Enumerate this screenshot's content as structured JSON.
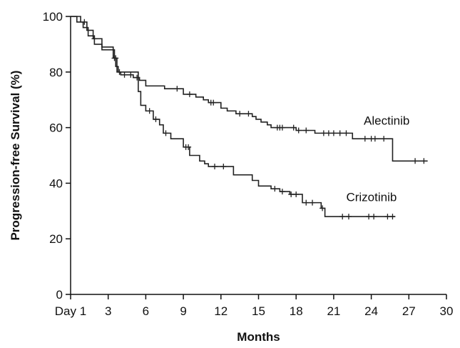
{
  "chart_data": {
    "type": "line",
    "title": "",
    "xlabel": "Months",
    "ylabel": "Progression-free Survival (%)",
    "xlim": [
      0,
      30
    ],
    "ylim": [
      0,
      100
    ],
    "xticks": [
      {
        "value": 0,
        "label": "Day 1"
      },
      {
        "value": 3,
        "label": "3"
      },
      {
        "value": 6,
        "label": "6"
      },
      {
        "value": 9,
        "label": "9"
      },
      {
        "value": 12,
        "label": "12"
      },
      {
        "value": 15,
        "label": "15"
      },
      {
        "value": 18,
        "label": "18"
      },
      {
        "value": 21,
        "label": "21"
      },
      {
        "value": 24,
        "label": "24"
      },
      {
        "value": 27,
        "label": "27"
      },
      {
        "value": 30,
        "label": "30"
      }
    ],
    "yticks": [
      0,
      20,
      40,
      60,
      80,
      100
    ],
    "grid": false,
    "line_color": "#222222",
    "series": [
      {
        "name": "Alectinib",
        "step": true,
        "x": [
          0,
          0.8,
          1.3,
          1.8,
          2.5,
          3.4,
          3.6,
          3.8,
          4.0,
          5.0,
          5.5,
          6.0,
          7.5,
          9.0,
          10.0,
          10.6,
          11.0,
          12.0,
          12.5,
          13.2,
          14.5,
          14.8,
          15.2,
          15.7,
          16.0,
          18.0,
          18.5,
          19.5,
          22.5,
          25.7
        ],
        "y": [
          100,
          98,
          95,
          92,
          89,
          85,
          82,
          80,
          79,
          78,
          77,
          75,
          74,
          72,
          71,
          70,
          69,
          67,
          66,
          65,
          64,
          63,
          62,
          61,
          60,
          59,
          59,
          58,
          56,
          48
        ],
        "censored": [
          {
            "x": 1.1,
            "y": 98
          },
          {
            "x": 1.9,
            "y": 92
          },
          {
            "x": 3.5,
            "y": 85
          },
          {
            "x": 3.9,
            "y": 80
          },
          {
            "x": 4.3,
            "y": 79
          },
          {
            "x": 4.8,
            "y": 79
          },
          {
            "x": 5.3,
            "y": 78
          },
          {
            "x": 8.5,
            "y": 74
          },
          {
            "x": 9.5,
            "y": 72
          },
          {
            "x": 11.2,
            "y": 69
          },
          {
            "x": 11.4,
            "y": 69
          },
          {
            "x": 13.5,
            "y": 65
          },
          {
            "x": 14.2,
            "y": 65
          },
          {
            "x": 16.5,
            "y": 60
          },
          {
            "x": 16.7,
            "y": 60
          },
          {
            "x": 16.9,
            "y": 60
          },
          {
            "x": 17.8,
            "y": 60
          },
          {
            "x": 18.2,
            "y": 59
          },
          {
            "x": 18.8,
            "y": 59
          },
          {
            "x": 20.2,
            "y": 58
          },
          {
            "x": 20.6,
            "y": 58
          },
          {
            "x": 21.0,
            "y": 58
          },
          {
            "x": 21.5,
            "y": 58
          },
          {
            "x": 22.0,
            "y": 58
          },
          {
            "x": 23.5,
            "y": 56
          },
          {
            "x": 24.0,
            "y": 56
          },
          {
            "x": 24.3,
            "y": 56
          },
          {
            "x": 25.0,
            "y": 56
          },
          {
            "x": 27.5,
            "y": 48
          },
          {
            "x": 28.2,
            "y": 48
          }
        ],
        "end_x": 28.5
      },
      {
        "name": "Crizotinib",
        "step": true,
        "x": [
          0,
          0.5,
          1.0,
          1.4,
          1.9,
          2.5,
          3.5,
          3.7,
          5.4,
          5.6,
          6.0,
          6.6,
          7.1,
          7.4,
          8.0,
          9.0,
          9.5,
          10.3,
          10.7,
          11.0,
          13.0,
          14.5,
          15.0,
          16.0,
          16.7,
          17.5,
          18.5,
          20.0,
          20.3
        ],
        "y": [
          100,
          98,
          96,
          93,
          90,
          88,
          85,
          80,
          73,
          68,
          66,
          63,
          61,
          58,
          56,
          53,
          50,
          48,
          47,
          46,
          43,
          41,
          39,
          38,
          37,
          36,
          33,
          31,
          28
        ],
        "censored": [
          {
            "x": 3.6,
            "y": 85
          },
          {
            "x": 6.3,
            "y": 66
          },
          {
            "x": 6.8,
            "y": 63
          },
          {
            "x": 7.6,
            "y": 58
          },
          {
            "x": 9.2,
            "y": 53
          },
          {
            "x": 9.4,
            "y": 53
          },
          {
            "x": 11.5,
            "y": 46
          },
          {
            "x": 12.2,
            "y": 46
          },
          {
            "x": 16.3,
            "y": 38
          },
          {
            "x": 16.9,
            "y": 37
          },
          {
            "x": 17.6,
            "y": 36
          },
          {
            "x": 18.0,
            "y": 36
          },
          {
            "x": 18.8,
            "y": 33
          },
          {
            "x": 19.3,
            "y": 33
          },
          {
            "x": 20.1,
            "y": 31
          },
          {
            "x": 21.7,
            "y": 28
          },
          {
            "x": 22.2,
            "y": 28
          },
          {
            "x": 23.8,
            "y": 28
          },
          {
            "x": 24.2,
            "y": 28
          },
          {
            "x": 25.3,
            "y": 28
          },
          {
            "x": 25.7,
            "y": 28
          }
        ],
        "end_x": 25.9
      }
    ],
    "labels": [
      {
        "text": "Alectinib",
        "x": 23.4,
        "y": 61
      },
      {
        "text": "Crizotinib",
        "x": 22.0,
        "y": 33.5
      }
    ]
  }
}
